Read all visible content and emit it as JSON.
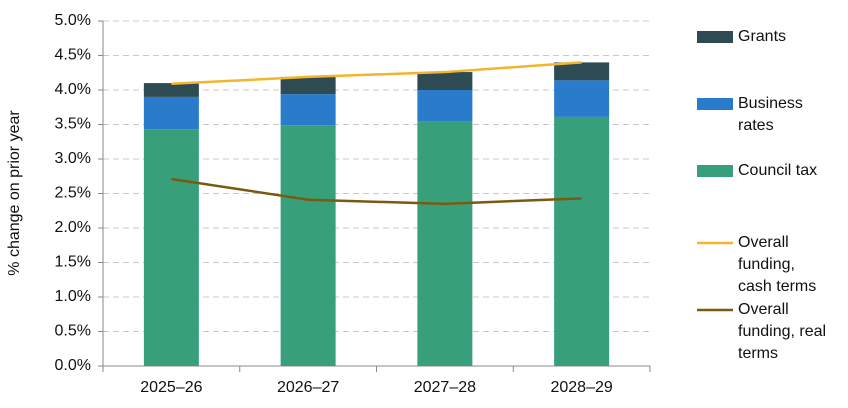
{
  "chart_data": {
    "type": "bar",
    "stacked": true,
    "y_label": "% change on prior year",
    "categories": [
      "2025–26",
      "2026–27",
      "2027–28",
      "2028–29"
    ],
    "series": [
      {
        "name": "Council tax",
        "color": "#37a07a",
        "type": "bar",
        "values": [
          3.43,
          3.49,
          3.55,
          3.61
        ]
      },
      {
        "name": "Business rates",
        "color": "#2a7bc9",
        "type": "bar",
        "values": [
          0.47,
          0.45,
          0.45,
          0.53
        ]
      },
      {
        "name": "Grants",
        "color": "#2e4a52",
        "type": "bar",
        "values": [
          0.2,
          0.25,
          0.26,
          0.26
        ]
      },
      {
        "name": "Overall funding, cash terms",
        "color": "#f2b62e",
        "type": "line",
        "values": [
          4.09,
          4.19,
          4.26,
          4.4
        ]
      },
      {
        "name": "Overall funding, real terms",
        "color": "#7a5a10",
        "type": "line",
        "values": [
          2.71,
          2.41,
          2.35,
          2.43
        ]
      }
    ],
    "ylim": [
      0,
      5
    ],
    "yticks": [
      {
        "value": 0,
        "label": "0.0%"
      },
      {
        "value": 0.5,
        "label": "0.5%"
      },
      {
        "value": 1,
        "label": "1.0%"
      },
      {
        "value": 1.5,
        "label": "1.5%"
      },
      {
        "value": 2,
        "label": "2.0%"
      },
      {
        "value": 2.5,
        "label": "2.5%"
      },
      {
        "value": 3,
        "label": "3.0%"
      },
      {
        "value": 3.5,
        "label": "3.5%"
      },
      {
        "value": 4,
        "label": "4.0%"
      },
      {
        "value": 4.5,
        "label": "4.5%"
      },
      {
        "value": 5,
        "label": "5.0%"
      }
    ],
    "grid": true
  }
}
